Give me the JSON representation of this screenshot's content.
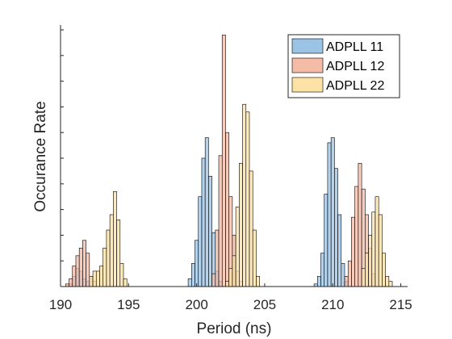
{
  "chart_data": {
    "type": "bar",
    "title": "",
    "xlabel": "Period (ns)",
    "ylabel": "Occurance Rate",
    "xlim": [
      190,
      215.5
    ],
    "ylim": [
      0,
      1
    ],
    "xticks": [
      190,
      195,
      200,
      205,
      210,
      215
    ],
    "yticks_labeled": false,
    "grid": false,
    "legend_position": "top-right",
    "bin_width": 0.25,
    "series": [
      {
        "name": "ADPLL 11",
        "color": "#9bc3e6",
        "bins": [
          {
            "x": 190.75,
            "y": 0.01
          },
          {
            "x": 191.0,
            "y": 0.04
          },
          {
            "x": 191.25,
            "y": 0.07
          },
          {
            "x": 191.5,
            "y": 0.06
          },
          {
            "x": 191.75,
            "y": 0.03
          },
          {
            "x": 192.0,
            "y": 0.02
          },
          {
            "x": 199.5,
            "y": 0.03
          },
          {
            "x": 199.75,
            "y": 0.09
          },
          {
            "x": 200.0,
            "y": 0.18
          },
          {
            "x": 200.25,
            "y": 0.35
          },
          {
            "x": 200.5,
            "y": 0.5
          },
          {
            "x": 200.75,
            "y": 0.58
          },
          {
            "x": 201.0,
            "y": 0.43
          },
          {
            "x": 201.25,
            "y": 0.21
          },
          {
            "x": 201.5,
            "y": 0.06
          },
          {
            "x": 201.75,
            "y": 0.02
          },
          {
            "x": 208.75,
            "y": 0.01
          },
          {
            "x": 209.0,
            "y": 0.04
          },
          {
            "x": 209.25,
            "y": 0.13
          },
          {
            "x": 209.5,
            "y": 0.36
          },
          {
            "x": 209.75,
            "y": 0.56
          },
          {
            "x": 210.0,
            "y": 0.58
          },
          {
            "x": 210.25,
            "y": 0.46
          },
          {
            "x": 210.5,
            "y": 0.28
          },
          {
            "x": 210.75,
            "y": 0.09
          },
          {
            "x": 211.0,
            "y": 0.02
          }
        ]
      },
      {
        "name": "ADPLL 12",
        "color": "#f4bba7",
        "bins": [
          {
            "x": 190.5,
            "y": 0.01
          },
          {
            "x": 190.75,
            "y": 0.03
          },
          {
            "x": 191.0,
            "y": 0.08
          },
          {
            "x": 191.25,
            "y": 0.12
          },
          {
            "x": 191.5,
            "y": 0.15
          },
          {
            "x": 191.75,
            "y": 0.18
          },
          {
            "x": 192.0,
            "y": 0.13
          },
          {
            "x": 192.25,
            "y": 0.04
          },
          {
            "x": 192.5,
            "y": 0.02
          },
          {
            "x": 201.25,
            "y": 0.05
          },
          {
            "x": 201.5,
            "y": 0.22
          },
          {
            "x": 201.75,
            "y": 0.51
          },
          {
            "x": 202.0,
            "y": 0.98
          },
          {
            "x": 202.25,
            "y": 0.6
          },
          {
            "x": 202.5,
            "y": 0.35
          },
          {
            "x": 202.75,
            "y": 0.2
          },
          {
            "x": 203.0,
            "y": 0.06
          },
          {
            "x": 203.25,
            "y": 0.02
          },
          {
            "x": 211.0,
            "y": 0.04
          },
          {
            "x": 211.25,
            "y": 0.1
          },
          {
            "x": 211.5,
            "y": 0.27
          },
          {
            "x": 211.75,
            "y": 0.39
          },
          {
            "x": 212.0,
            "y": 0.48
          },
          {
            "x": 212.25,
            "y": 0.38
          },
          {
            "x": 212.5,
            "y": 0.28
          },
          {
            "x": 212.75,
            "y": 0.15
          },
          {
            "x": 213.0,
            "y": 0.05
          }
        ]
      },
      {
        "name": "ADPLL 22",
        "color": "#fce2a5",
        "bins": [
          {
            "x": 192.25,
            "y": 0.04
          },
          {
            "x": 192.5,
            "y": 0.06
          },
          {
            "x": 192.75,
            "y": 0.06
          },
          {
            "x": 193.0,
            "y": 0.08
          },
          {
            "x": 193.25,
            "y": 0.15
          },
          {
            "x": 193.5,
            "y": 0.22
          },
          {
            "x": 193.75,
            "y": 0.28
          },
          {
            "x": 194.0,
            "y": 0.37
          },
          {
            "x": 194.25,
            "y": 0.26
          },
          {
            "x": 194.5,
            "y": 0.09
          },
          {
            "x": 194.75,
            "y": 0.03
          },
          {
            "x": 202.25,
            "y": 0.02
          },
          {
            "x": 202.5,
            "y": 0.07
          },
          {
            "x": 202.75,
            "y": 0.12
          },
          {
            "x": 203.0,
            "y": 0.31
          },
          {
            "x": 203.25,
            "y": 0.48
          },
          {
            "x": 203.5,
            "y": 0.71
          },
          {
            "x": 203.75,
            "y": 0.68
          },
          {
            "x": 204.0,
            "y": 0.45
          },
          {
            "x": 204.25,
            "y": 0.22
          },
          {
            "x": 204.5,
            "y": 0.04
          },
          {
            "x": 212.25,
            "y": 0.07
          },
          {
            "x": 212.5,
            "y": 0.13
          },
          {
            "x": 212.75,
            "y": 0.2
          },
          {
            "x": 213.0,
            "y": 0.29
          },
          {
            "x": 213.25,
            "y": 0.35
          },
          {
            "x": 213.5,
            "y": 0.28
          },
          {
            "x": 213.75,
            "y": 0.13
          },
          {
            "x": 214.0,
            "y": 0.04
          },
          {
            "x": 214.25,
            "y": 0.02
          }
        ]
      }
    ]
  }
}
